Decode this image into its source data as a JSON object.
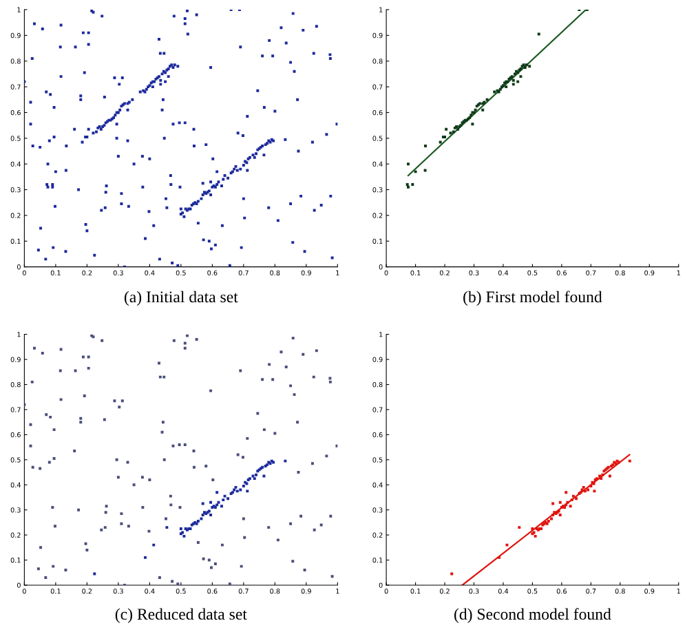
{
  "chart_data": [
    {
      "type": "scatter",
      "title": "(a) Initial data set",
      "xlim": [
        0,
        1
      ],
      "ylim": [
        0,
        1
      ],
      "xticks": [
        0,
        0.1,
        0.2,
        0.3,
        0.4,
        0.5,
        0.6,
        0.7,
        0.8,
        0.9,
        1
      ],
      "yticks": [
        0,
        0.1,
        0.2,
        0.3,
        0.4,
        0.5,
        0.6,
        0.7,
        0.8,
        0.9,
        1
      ],
      "marker": "square",
      "grid": false,
      "series": [
        {
          "type": "scatter",
          "color": "#1c2a9c",
          "x": [
            0.0,
            0.02,
            0.02,
            0.025,
            0.027,
            0.032,
            0.05,
            0.052,
            0.058,
            0.045,
            0.068,
            0.07,
            0.09,
            0.08,
            0.083,
            0.092,
            0.095,
            0.095,
            0.098,
            0.115,
            0.117,
            0.117,
            0.132,
            0.16,
            0.163,
            0.173,
            0.18,
            0.18,
            0.188,
            0.192,
            0.196,
            0.2,
            0.205,
            0.205,
            0.215,
            0.22,
            0.248,
            0.246,
            0.256,
            0.258,
            0.26,
            0.262,
            0.288,
            0.295,
            0.3,
            0.303,
            0.31,
            0.31,
            0.313,
            0.33,
            0.333,
            0.35,
            0.377,
            0.378,
            0.398,
            0.4,
            0.43,
            0.432,
            0.434,
            0.44,
            0.443,
            0.446,
            0.447,
            0.452,
            0.467,
            0.468,
            0.472,
            0.475,
            0.478,
            0.49,
            0.495,
            0.497,
            0.513,
            0.513,
            0.513,
            0.52,
            0.541,
            0.542,
            0.55,
            0.555,
            0.572,
            0.58,
            0.59,
            0.595,
            0.597,
            0.602,
            0.61,
            0.632,
            0.656,
            0.682,
            0.69,
            0.693,
            0.698,
            0.7,
            0.703,
            0.712,
            0.745,
            0.76,
            0.766,
            0.78,
            0.782,
            0.793,
            0.8,
            0.81,
            0.82,
            0.836,
            0.85,
            0.85,
            0.857,
            0.858,
            0.862,
            0.872,
            0.875,
            0.883,
            0.89,
            0.895,
            0.92,
            0.924,
            0.926,
            0.933,
            0.948,
            0.965,
            0.976,
            0.977,
            0.978,
            0.983,
            0.998,
            0.32
          ],
          "values": [
            0.72,
            0.64,
            0.555,
            0.81,
            0.47,
            0.945,
            0.465,
            0.15,
            0.925,
            0.065,
            0.03,
            0.68,
            0.31,
            0.49,
            0.67,
            0.075,
            0.62,
            0.505,
            0.235,
            0.855,
            0.94,
            0.74,
            0.06,
            0.535,
            0.855,
            0.3,
            0.665,
            0.65,
            0.91,
            0.755,
            0.165,
            0.14,
            0.91,
            0.865,
            0.995,
            0.99,
            0.975,
            0.22,
            0.66,
            0.23,
            0.29,
            0.315,
            0.735,
            0.5,
            0.43,
            0.71,
            0.285,
            0.245,
            0.735,
            0.49,
            0.235,
            0.4,
            0.43,
            0.31,
            0.215,
            0.42,
            0.885,
            0.03,
            0.83,
            0.61,
            0.65,
            0.83,
            0.5,
            0.265,
            0.355,
            0.32,
            0.015,
            0.555,
            0.975,
            0.005,
            0.56,
            0.31,
            0.56,
            0.965,
            0.945,
            0.995,
            0.535,
            0.47,
            0.98,
            0.17,
            0.105,
            0.475,
            0.1,
            0.775,
            0.07,
            0.42,
            0.085,
            0.16,
            0.005,
            0.52,
            0.855,
            0.075,
            0.51,
            0.265,
            0.19,
            0.585,
            0.685,
            0.82,
            0.62,
            0.23,
            0.88,
            0.82,
            0.605,
            0.18,
            0.93,
            0.87,
            0.795,
            0.245,
            0.095,
            0.985,
            0.76,
            0.65,
            0.45,
            0.275,
            0.92,
            0.06,
            0.485,
            0.83,
            0.22,
            0.935,
            0.24,
            0.515,
            0.825,
            0.81,
            0.275,
            0.035,
            0.555,
            0.0
          ]
        },
        {
          "type": "scatter",
          "color": "#1c2a9c",
          "x": [
            0.072,
            0.075,
            0.075,
            0.09,
            0.1,
            0.133,
            0.134,
            0.295,
            0.522,
            0.66,
            0.687
          ],
          "values": [
            0.32,
            0.31,
            0.4,
            0.32,
            0.37,
            0.375,
            0.47,
            0.555,
            0.905,
            1.0,
            1.0
          ]
        },
        {
          "type": "scatter",
          "color": "#1c2a9c",
          "x": [
            0.185,
            0.195,
            0.2,
            0.205,
            0.22,
            0.23,
            0.235,
            0.24,
            0.245,
            0.25,
            0.255,
            0.26,
            0.265,
            0.27,
            0.275,
            0.28,
            0.285,
            0.29,
            0.295,
            0.3,
            0.305,
            0.31,
            0.315,
            0.32,
            0.33,
            0.335,
            0.345,
            0.37,
            0.38,
            0.385,
            0.39,
            0.395,
            0.4,
            0.405,
            0.41,
            0.415,
            0.42,
            0.425,
            0.43,
            0.435,
            0.44,
            0.445,
            0.45,
            0.455,
            0.46,
            0.465,
            0.47,
            0.475,
            0.48,
            0.49,
            0.46,
            0.45,
            0.435,
            0.33,
            0.41
          ],
          "values": [
            0.485,
            0.505,
            0.505,
            0.535,
            0.52,
            0.525,
            0.54,
            0.545,
            0.535,
            0.545,
            0.55,
            0.56,
            0.565,
            0.57,
            0.57,
            0.575,
            0.58,
            0.59,
            0.6,
            0.6,
            0.61,
            0.625,
            0.63,
            0.635,
            0.635,
            0.64,
            0.65,
            0.68,
            0.685,
            0.68,
            0.69,
            0.7,
            0.705,
            0.715,
            0.72,
            0.72,
            0.73,
            0.735,
            0.74,
            0.725,
            0.75,
            0.76,
            0.755,
            0.765,
            0.77,
            0.78,
            0.785,
            0.775,
            0.785,
            0.78,
            0.74,
            0.72,
            0.71,
            0.61,
            0.7
          ]
        },
        {
          "type": "scatter",
          "color": "#1c2a9c",
          "x": [
            0.5,
            0.5,
            0.505,
            0.51,
            0.515,
            0.52,
            0.525,
            0.53,
            0.535,
            0.54,
            0.545,
            0.55,
            0.555,
            0.565,
            0.57,
            0.575,
            0.58,
            0.585,
            0.59,
            0.595,
            0.6,
            0.605,
            0.61,
            0.615,
            0.62,
            0.63,
            0.635,
            0.64,
            0.65,
            0.66,
            0.665,
            0.67,
            0.675,
            0.68,
            0.69,
            0.7,
            0.705,
            0.71,
            0.715,
            0.72,
            0.73,
            0.735,
            0.74,
            0.745,
            0.75,
            0.755,
            0.76,
            0.765,
            0.77,
            0.775,
            0.78,
            0.785,
            0.79,
            0.795,
            0.57,
            0.595,
            0.615
          ],
          "values": [
            0.225,
            0.205,
            0.21,
            0.195,
            0.225,
            0.22,
            0.225,
            0.225,
            0.24,
            0.245,
            0.25,
            0.245,
            0.255,
            0.265,
            0.28,
            0.29,
            0.285,
            0.29,
            0.295,
            0.28,
            0.31,
            0.315,
            0.31,
            0.32,
            0.33,
            0.315,
            0.34,
            0.355,
            0.345,
            0.365,
            0.37,
            0.38,
            0.39,
            0.375,
            0.38,
            0.395,
            0.41,
            0.405,
            0.42,
            0.425,
            0.435,
            0.425,
            0.44,
            0.455,
            0.46,
            0.465,
            0.47,
            0.435,
            0.475,
            0.48,
            0.49,
            0.485,
            0.495,
            0.49,
            0.325,
            0.33,
            0.37
          ]
        },
        {
          "type": "scatter",
          "color": "#1c2a9c",
          "x": [
            0.224,
            0.386,
            0.413,
            0.455,
            0.712,
            0.833
          ],
          "values": [
            0.045,
            0.11,
            0.16,
            0.23,
            0.375,
            0.495
          ]
        }
      ]
    },
    {
      "type": "scatter",
      "title": "(b) First model found",
      "xlim": [
        0,
        1
      ],
      "ylim": [
        0,
        1
      ],
      "xticks": [
        0,
        0.1,
        0.2,
        0.3,
        0.4,
        0.5,
        0.6,
        0.7,
        0.8,
        0.9,
        1
      ],
      "yticks": [
        0,
        0.1,
        0.2,
        0.3,
        0.4,
        0.5,
        0.6,
        0.7,
        0.8,
        0.9,
        1
      ],
      "marker": "square",
      "grid": false,
      "series": [
        {
          "type": "scatter",
          "color": "#0e3a18",
          "x": [
            0.072,
            0.075,
            0.075,
            0.09,
            0.1,
            0.133,
            0.134,
            0.295,
            0.522,
            0.66,
            0.687
          ],
          "values": [
            0.32,
            0.31,
            0.4,
            0.32,
            0.37,
            0.375,
            0.47,
            0.555,
            0.905,
            1.0,
            1.0
          ]
        },
        {
          "type": "scatter",
          "color": "#0e3a18",
          "x": [
            0.185,
            0.195,
            0.2,
            0.205,
            0.22,
            0.23,
            0.235,
            0.24,
            0.245,
            0.25,
            0.255,
            0.26,
            0.265,
            0.27,
            0.275,
            0.28,
            0.285,
            0.29,
            0.295,
            0.3,
            0.305,
            0.31,
            0.315,
            0.32,
            0.33,
            0.335,
            0.345,
            0.37,
            0.38,
            0.385,
            0.39,
            0.395,
            0.4,
            0.405,
            0.41,
            0.415,
            0.42,
            0.425,
            0.43,
            0.435,
            0.44,
            0.445,
            0.45,
            0.455,
            0.46,
            0.465,
            0.47,
            0.475,
            0.48,
            0.49,
            0.46,
            0.45,
            0.435,
            0.33,
            0.41
          ],
          "values": [
            0.485,
            0.505,
            0.505,
            0.535,
            0.52,
            0.525,
            0.54,
            0.545,
            0.535,
            0.545,
            0.55,
            0.56,
            0.565,
            0.57,
            0.57,
            0.575,
            0.58,
            0.59,
            0.6,
            0.6,
            0.61,
            0.625,
            0.63,
            0.635,
            0.635,
            0.64,
            0.65,
            0.68,
            0.685,
            0.68,
            0.69,
            0.7,
            0.705,
            0.715,
            0.72,
            0.72,
            0.73,
            0.735,
            0.74,
            0.725,
            0.75,
            0.76,
            0.755,
            0.765,
            0.77,
            0.78,
            0.785,
            0.775,
            0.785,
            0.78,
            0.74,
            0.72,
            0.71,
            0.61,
            0.7
          ]
        },
        {
          "type": "line",
          "marker": "none",
          "color": "#1d5a22",
          "x": [
            0.075,
            0.683
          ],
          "values": [
            0.355,
            1.0
          ]
        }
      ]
    },
    {
      "type": "scatter",
      "title": "(c) Reduced data set",
      "xlim": [
        0,
        1
      ],
      "ylim": [
        0,
        1
      ],
      "xticks": [
        0,
        0.1,
        0.2,
        0.3,
        0.4,
        0.5,
        0.6,
        0.7,
        0.8,
        0.9,
        1
      ],
      "yticks": [
        0,
        0.1,
        0.2,
        0.3,
        0.4,
        0.5,
        0.6,
        0.7,
        0.8,
        0.9,
        1
      ],
      "marker": "square",
      "grid": false,
      "series": [
        {
          "type": "scatter",
          "color": "#4a4f7a",
          "x": [
            0.0,
            0.02,
            0.02,
            0.025,
            0.027,
            0.032,
            0.05,
            0.052,
            0.058,
            0.045,
            0.068,
            0.07,
            0.09,
            0.08,
            0.083,
            0.092,
            0.095,
            0.095,
            0.098,
            0.115,
            0.117,
            0.117,
            0.132,
            0.16,
            0.163,
            0.173,
            0.18,
            0.18,
            0.188,
            0.192,
            0.196,
            0.2,
            0.205,
            0.205,
            0.215,
            0.22,
            0.248,
            0.246,
            0.256,
            0.258,
            0.26,
            0.262,
            0.288,
            0.295,
            0.3,
            0.303,
            0.31,
            0.31,
            0.313,
            0.33,
            0.333,
            0.35,
            0.377,
            0.378,
            0.398,
            0.4,
            0.43,
            0.432,
            0.434,
            0.44,
            0.443,
            0.446,
            0.447,
            0.452,
            0.467,
            0.468,
            0.472,
            0.475,
            0.478,
            0.49,
            0.495,
            0.497,
            0.513,
            0.513,
            0.513,
            0.52,
            0.541,
            0.542,
            0.55,
            0.555,
            0.572,
            0.58,
            0.59,
            0.595,
            0.597,
            0.602,
            0.61,
            0.632,
            0.656,
            0.682,
            0.69,
            0.693,
            0.698,
            0.7,
            0.703,
            0.712,
            0.745,
            0.76,
            0.766,
            0.78,
            0.782,
            0.793,
            0.8,
            0.81,
            0.82,
            0.836,
            0.85,
            0.85,
            0.857,
            0.858,
            0.862,
            0.872,
            0.875,
            0.883,
            0.89,
            0.895,
            0.92,
            0.924,
            0.926,
            0.933,
            0.948,
            0.965,
            0.976,
            0.977,
            0.978,
            0.983,
            0.998,
            0.32
          ],
          "values": [
            0.72,
            0.64,
            0.555,
            0.81,
            0.47,
            0.945,
            0.465,
            0.15,
            0.925,
            0.065,
            0.03,
            0.68,
            0.31,
            0.49,
            0.67,
            0.075,
            0.62,
            0.505,
            0.235,
            0.855,
            0.94,
            0.74,
            0.06,
            0.535,
            0.855,
            0.3,
            0.665,
            0.65,
            0.91,
            0.755,
            0.165,
            0.14,
            0.91,
            0.865,
            0.995,
            0.99,
            0.975,
            0.22,
            0.66,
            0.23,
            0.29,
            0.315,
            0.735,
            0.5,
            0.43,
            0.71,
            0.285,
            0.245,
            0.735,
            0.49,
            0.235,
            0.4,
            0.43,
            0.31,
            0.215,
            0.42,
            0.885,
            0.03,
            0.83,
            0.61,
            0.65,
            0.83,
            0.5,
            0.265,
            0.355,
            0.32,
            0.015,
            0.555,
            0.975,
            0.005,
            0.56,
            0.31,
            0.56,
            0.965,
            0.945,
            0.995,
            0.535,
            0.47,
            0.98,
            0.17,
            0.105,
            0.475,
            0.1,
            0.775,
            0.07,
            0.42,
            0.085,
            0.16,
            0.005,
            0.52,
            0.855,
            0.075,
            0.51,
            0.265,
            0.19,
            0.585,
            0.685,
            0.82,
            0.62,
            0.23,
            0.88,
            0.82,
            0.605,
            0.18,
            0.93,
            0.87,
            0.795,
            0.245,
            0.095,
            0.985,
            0.76,
            0.65,
            0.45,
            0.275,
            0.92,
            0.06,
            0.485,
            0.83,
            0.22,
            0.935,
            0.24,
            0.515,
            0.825,
            0.81,
            0.275,
            0.035,
            0.555,
            0.0
          ]
        },
        {
          "type": "scatter",
          "color": "#1c2a9c",
          "x": [
            0.5,
            0.5,
            0.505,
            0.51,
            0.515,
            0.52,
            0.525,
            0.53,
            0.535,
            0.54,
            0.545,
            0.55,
            0.555,
            0.565,
            0.57,
            0.575,
            0.58,
            0.585,
            0.59,
            0.595,
            0.6,
            0.605,
            0.61,
            0.615,
            0.62,
            0.63,
            0.635,
            0.64,
            0.65,
            0.66,
            0.665,
            0.67,
            0.675,
            0.68,
            0.69,
            0.7,
            0.705,
            0.71,
            0.715,
            0.72,
            0.73,
            0.735,
            0.74,
            0.745,
            0.75,
            0.755,
            0.76,
            0.765,
            0.77,
            0.775,
            0.78,
            0.785,
            0.79,
            0.795,
            0.57,
            0.595,
            0.615
          ],
          "values": [
            0.225,
            0.205,
            0.21,
            0.195,
            0.225,
            0.22,
            0.225,
            0.225,
            0.24,
            0.245,
            0.25,
            0.245,
            0.255,
            0.265,
            0.28,
            0.29,
            0.285,
            0.29,
            0.295,
            0.28,
            0.31,
            0.315,
            0.31,
            0.32,
            0.33,
            0.315,
            0.34,
            0.355,
            0.345,
            0.365,
            0.37,
            0.38,
            0.39,
            0.375,
            0.38,
            0.395,
            0.41,
            0.405,
            0.42,
            0.425,
            0.435,
            0.425,
            0.44,
            0.455,
            0.46,
            0.465,
            0.47,
            0.435,
            0.475,
            0.48,
            0.49,
            0.485,
            0.495,
            0.49,
            0.325,
            0.33,
            0.37
          ]
        },
        {
          "type": "scatter",
          "color": "#1c2a9c",
          "x": [
            0.224,
            0.386,
            0.413,
            0.455,
            0.712,
            0.833
          ],
          "values": [
            0.045,
            0.11,
            0.16,
            0.23,
            0.375,
            0.495
          ]
        }
      ]
    },
    {
      "type": "scatter",
      "title": "(d) Second model found",
      "xlim": [
        0,
        1
      ],
      "ylim": [
        0,
        1
      ],
      "xticks": [
        0,
        0.1,
        0.2,
        0.3,
        0.4,
        0.5,
        0.6,
        0.7,
        0.8,
        0.9,
        1
      ],
      "yticks": [
        0,
        0.1,
        0.2,
        0.3,
        0.4,
        0.5,
        0.6,
        0.7,
        0.8,
        0.9,
        1
      ],
      "marker": "square",
      "grid": false,
      "series": [
        {
          "type": "scatter",
          "color": "#e0140f",
          "x": [
            0.5,
            0.5,
            0.505,
            0.51,
            0.515,
            0.52,
            0.525,
            0.53,
            0.535,
            0.54,
            0.545,
            0.55,
            0.555,
            0.565,
            0.57,
            0.575,
            0.58,
            0.585,
            0.59,
            0.595,
            0.6,
            0.605,
            0.61,
            0.615,
            0.62,
            0.63,
            0.635,
            0.64,
            0.65,
            0.66,
            0.665,
            0.67,
            0.675,
            0.68,
            0.69,
            0.7,
            0.705,
            0.71,
            0.715,
            0.72,
            0.73,
            0.735,
            0.74,
            0.745,
            0.75,
            0.755,
            0.76,
            0.765,
            0.77,
            0.775,
            0.78,
            0.785,
            0.79,
            0.795,
            0.57,
            0.595,
            0.615
          ],
          "values": [
            0.225,
            0.205,
            0.21,
            0.195,
            0.225,
            0.22,
            0.225,
            0.225,
            0.24,
            0.245,
            0.25,
            0.245,
            0.255,
            0.265,
            0.28,
            0.29,
            0.285,
            0.29,
            0.295,
            0.28,
            0.31,
            0.315,
            0.31,
            0.32,
            0.33,
            0.315,
            0.34,
            0.355,
            0.345,
            0.365,
            0.37,
            0.38,
            0.39,
            0.375,
            0.38,
            0.395,
            0.41,
            0.405,
            0.42,
            0.425,
            0.435,
            0.425,
            0.44,
            0.455,
            0.46,
            0.465,
            0.47,
            0.435,
            0.475,
            0.48,
            0.49,
            0.485,
            0.495,
            0.49,
            0.325,
            0.33,
            0.37
          ]
        },
        {
          "type": "scatter",
          "color": "#e0140f",
          "x": [
            0.224,
            0.386,
            0.413,
            0.455,
            0.712,
            0.833
          ],
          "values": [
            0.045,
            0.11,
            0.16,
            0.23,
            0.375,
            0.495
          ]
        },
        {
          "type": "line",
          "marker": "none",
          "color": "#e0140f",
          "x": [
            0.26,
            0.832
          ],
          "values": [
            0.0,
            0.52
          ]
        }
      ]
    }
  ]
}
